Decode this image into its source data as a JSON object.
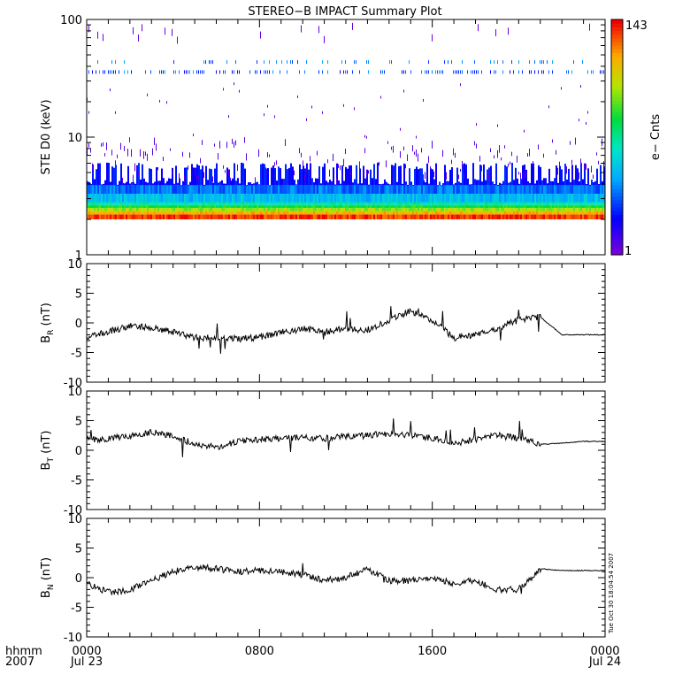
{
  "title": "STEREO−B IMPACT Summary Plot",
  "timestamp": "Tue Oct 30 18:04:54 2007",
  "time_axis": {
    "row_label": "hhmm",
    "year_label": "2007",
    "ticks": [
      {
        "time": "0000",
        "date": "Jul 23"
      },
      {
        "time": "0800",
        "date": ""
      },
      {
        "time": "1600",
        "date": ""
      },
      {
        "time": "0000",
        "date": "Jul 24"
      }
    ]
  },
  "colorbar": {
    "label": "e− Cnts",
    "min_label": "1",
    "max_label": "143"
  },
  "chart_data": [
    {
      "type": "heatmap",
      "ylabel": "STE D0 (keV)",
      "yscale": "log",
      "ylim": [
        1,
        100
      ],
      "ytick_labels": [
        "1",
        "10",
        "100"
      ],
      "xlim_hours": [
        0,
        24
      ],
      "colorbar_range": [
        1,
        143
      ],
      "description_bands_keV": {
        "peak_band": [
          2.0,
          2.2
        ],
        "high_band": [
          2.2,
          2.8
        ],
        "mid_band": [
          2.8,
          4.5
        ],
        "sparse_to": 10,
        "line_band": [
          33,
          45
        ]
      }
    },
    {
      "type": "line",
      "ylabel_main": "B",
      "ylabel_sub": "R",
      "ylabel_unit": " (nT)",
      "ylim": [
        -10,
        10
      ],
      "ytick_labels": [
        "-10",
        "-5",
        "0",
        "5",
        "10"
      ],
      "x_hours": [
        0,
        1,
        2,
        3,
        4,
        5,
        6,
        7,
        8,
        9,
        10,
        11,
        12,
        13,
        14,
        15,
        16,
        17,
        18,
        19,
        20,
        21,
        22,
        23,
        24
      ],
      "values": [
        -2.5,
        -1.5,
        -0.5,
        -0.8,
        -1.5,
        -2.5,
        -2.5,
        -2.7,
        -2.4,
        -1.6,
        -1.0,
        -1.5,
        -1.0,
        -1.2,
        0.5,
        2.0,
        0.5,
        -2.5,
        -2.0,
        -1.0,
        0.5,
        1.0,
        -2.0,
        -2.0,
        -2.0
      ]
    },
    {
      "type": "line",
      "ylabel_main": "B",
      "ylabel_sub": "T",
      "ylabel_unit": " (nT)",
      "ylim": [
        -10,
        10
      ],
      "ytick_labels": [
        "-10",
        "-5",
        "0",
        "5",
        "10"
      ],
      "x_hours": [
        0,
        1,
        2,
        3,
        4,
        5,
        6,
        7,
        8,
        9,
        10,
        11,
        12,
        13,
        14,
        15,
        16,
        17,
        18,
        19,
        20,
        21,
        22,
        23,
        24
      ],
      "values": [
        1.8,
        2.0,
        2.5,
        3.0,
        2.5,
        1.0,
        0.5,
        1.5,
        1.8,
        2.0,
        2.2,
        2.0,
        2.3,
        2.5,
        2.8,
        2.5,
        2.0,
        1.2,
        1.8,
        2.5,
        2.0,
        1.0,
        1.2,
        1.5,
        1.5
      ]
    },
    {
      "type": "line",
      "ylabel_main": "B",
      "ylabel_sub": "N",
      "ylabel_unit": " (nT)",
      "ylim": [
        -10,
        10
      ],
      "ytick_labels": [
        "-10",
        "-5",
        "0",
        "5",
        "10"
      ],
      "x_hours": [
        0,
        1,
        2,
        3,
        4,
        5,
        6,
        7,
        8,
        9,
        10,
        11,
        12,
        13,
        14,
        15,
        16,
        17,
        18,
        19,
        20,
        21,
        22,
        23,
        24
      ],
      "values": [
        -1.0,
        -2.5,
        -2.0,
        -0.5,
        1.0,
        1.8,
        1.5,
        1.0,
        1.2,
        1.0,
        0.5,
        -0.5,
        0.0,
        1.5,
        -0.5,
        -0.5,
        0.0,
        -1.0,
        -0.5,
        -2.0,
        -2.0,
        1.5,
        1.2,
        1.2,
        1.2
      ]
    }
  ]
}
